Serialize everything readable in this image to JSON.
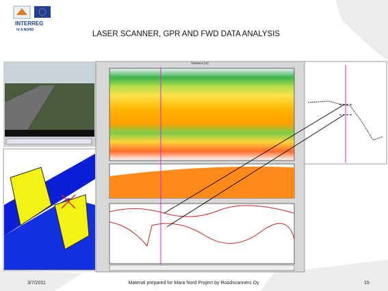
{
  "logo": {
    "line1": "INTERREG",
    "line2": "IV A NORD"
  },
  "header": {
    "title": "LASER SCANNER, GPR AND FWD DATA ANALYSIS"
  },
  "screenshot": {
    "distance_label": "Distance [m]"
  },
  "footer": {
    "date": "3/7/2011",
    "note": "Material prepared for Mara Nord Project by Roadscanners Oy",
    "page": "15"
  }
}
